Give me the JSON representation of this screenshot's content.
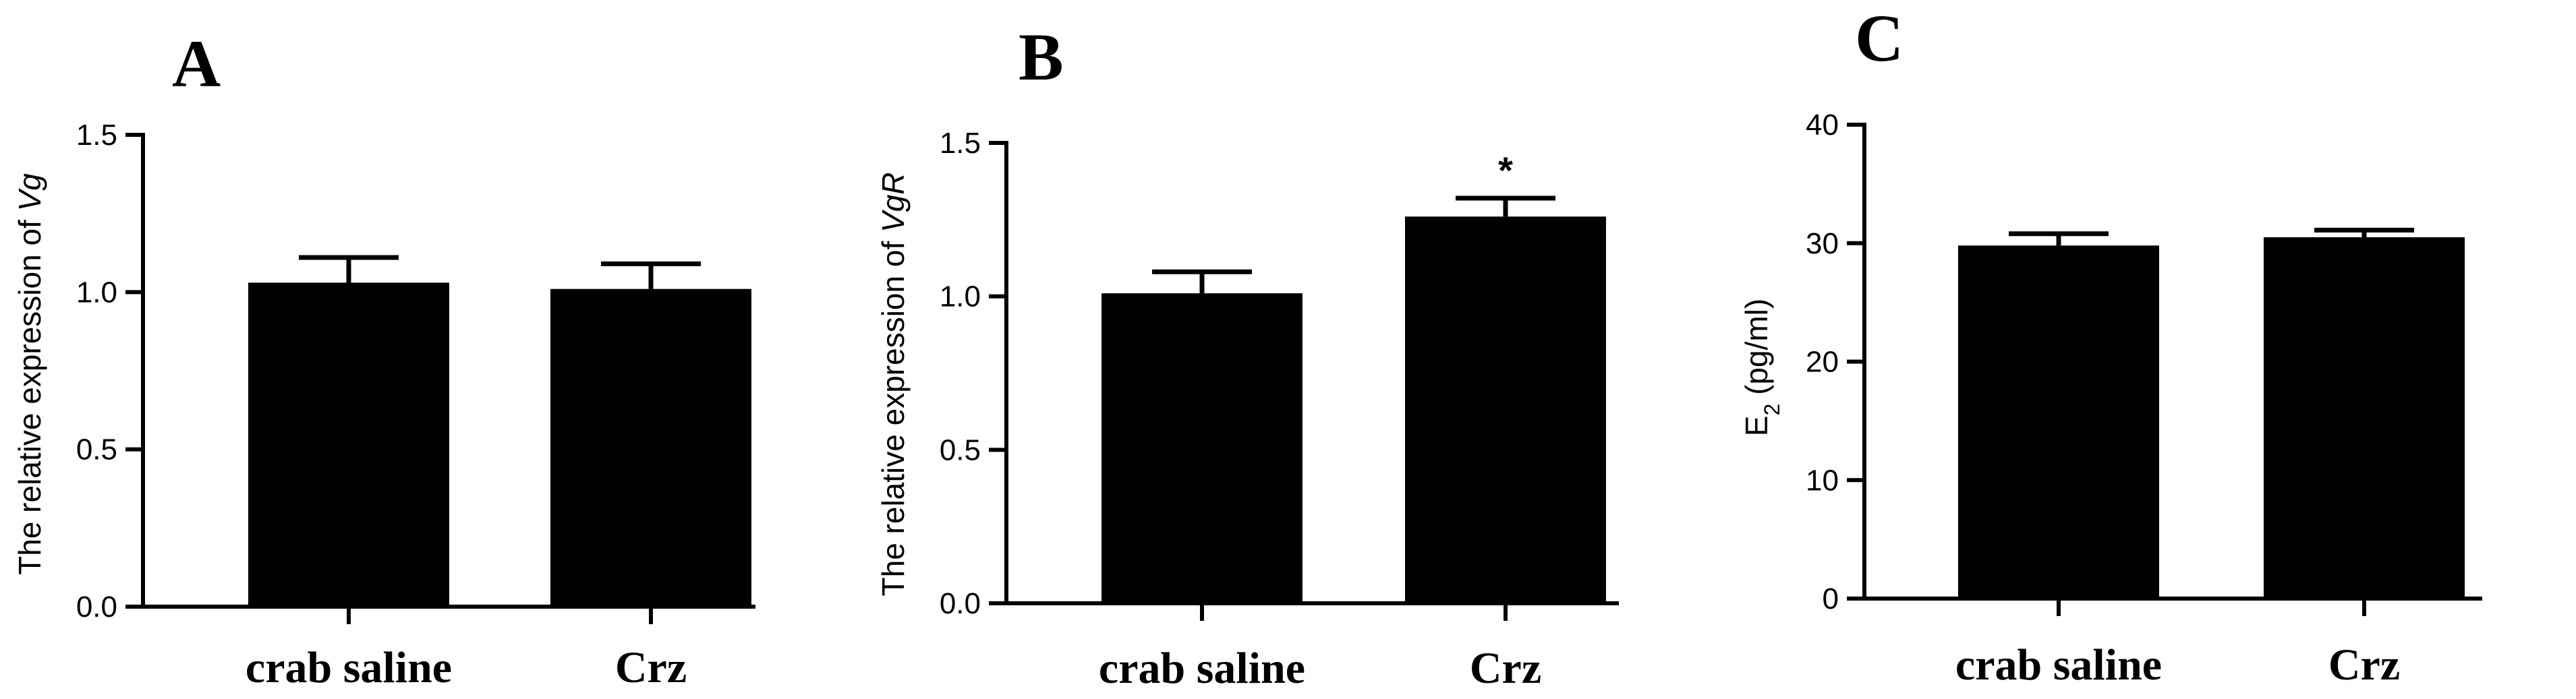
{
  "chart_data": [
    {
      "type": "bar",
      "panel": "A",
      "title": "",
      "ylabel_prefix": "The relative expression of ",
      "ylabel_gene": "Vg",
      "categories": [
        "crab saline",
        "Crz"
      ],
      "values": [
        1.03,
        1.01
      ],
      "errors": [
        0.08,
        0.08
      ],
      "annotations": [
        "",
        ""
      ],
      "ylim": [
        0,
        1.5
      ],
      "yticks": [
        0,
        0.5,
        1.0,
        1.5
      ],
      "ytick_labels": [
        "0.0",
        "0.5",
        "1.0",
        "1.5"
      ],
      "grid": false,
      "colors": {
        "bar": "#000000"
      }
    },
    {
      "type": "bar",
      "panel": "B",
      "title": "",
      "ylabel_prefix": "The relative expression of ",
      "ylabel_gene": "VgR",
      "categories": [
        "crab saline",
        "Crz"
      ],
      "values": [
        1.01,
        1.26
      ],
      "errors": [
        0.07,
        0.06
      ],
      "annotations": [
        "",
        "*"
      ],
      "ylim": [
        0,
        1.5
      ],
      "yticks": [
        0,
        0.5,
        1.0,
        1.5
      ],
      "ytick_labels": [
        "0.0",
        "0.5",
        "1.0",
        "1.5"
      ],
      "grid": false,
      "colors": {
        "bar": "#000000"
      }
    },
    {
      "type": "bar",
      "panel": "C",
      "title": "",
      "ylabel_base": "E",
      "ylabel_sub": "2",
      "ylabel_rest": " (pg/ml)",
      "categories": [
        "crab saline",
        "Crz"
      ],
      "values": [
        29.8,
        30.5
      ],
      "errors": [
        1.0,
        0.6
      ],
      "annotations": [
        "",
        ""
      ],
      "ylim": [
        0,
        40
      ],
      "yticks": [
        0,
        10,
        20,
        30,
        40
      ],
      "ytick_labels": [
        "0",
        "10",
        "20",
        "30",
        "40"
      ],
      "grid": false,
      "colors": {
        "bar": "#000000"
      }
    }
  ]
}
